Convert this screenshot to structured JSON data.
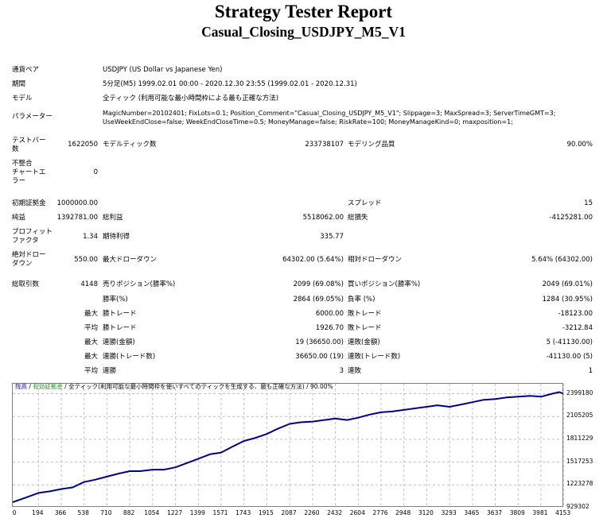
{
  "header": {
    "title": "Strategy Tester Report",
    "subtitle": "Casual_Closing_USDJPY_M5_V1"
  },
  "info": {
    "symbol_label": "通貨ペア",
    "symbol_value": "USDJPY (US Dollar vs Japanese Yen)",
    "period_label": "期間",
    "period_value": "5分足(M5) 1999.02.01 00:00 - 2020.12.30 23:55 (1999.02.01 - 2020.12.31)",
    "model_label": "モデル",
    "model_value": "全ティック (利用可能な最小時間枠による最も正確な方法)",
    "params_label": "パラメーター",
    "params_line1": "MagicNumber=20102401; FixLots=0.1; Position_Comment=\"Casual_Closing_USDJPY_M5_V1\"; Slippage=3; MaxSpread=3; ServerTimeGMT=3;",
    "params_line2": "UseWeekEndClose=false; WeekEndCloseTime=0.5; MoneyManage=false; RiskRate=100; MoneyManageKind=0; maxposition=1;"
  },
  "stats": {
    "bars_label_1": "テストバー",
    "bars_label_2": "数",
    "bars_value": "1622050",
    "ticks_label": "モデルティック数",
    "ticks_value": "233738107",
    "quality_label": "モデリング品質",
    "quality_value": "90.00%",
    "mismatch_label_1": "不整合",
    "mismatch_label_2": "チャートエ",
    "mismatch_label_3": "ラー",
    "mismatch_value": "0",
    "deposit_label": "初期証拠金",
    "deposit_value": "1000000.00",
    "spread_label": "スプレッド",
    "spread_value": "15",
    "net_profit_label": "純益",
    "net_profit_value": "1392781.00",
    "gross_profit_label": "総利益",
    "gross_profit_value": "5518062.00",
    "gross_loss_label": "総損失",
    "gross_loss_value": "-4125281.00",
    "pf_label_1": "プロフィット",
    "pf_label_2": "ファクタ",
    "pf_value": "1.34",
    "expected_label": "期待利得",
    "expected_value": "335.77",
    "abs_dd_label_1": "絶対ドロー",
    "abs_dd_label_2": "ダウン",
    "abs_dd_value": "550.00",
    "max_dd_label": "最大ドローダウン",
    "max_dd_value": "64302.00 (5.64%)",
    "rel_dd_label": "相対ドローダウン",
    "rel_dd_value": "5.64% (64302.00)",
    "total_trades_label": "総取引数",
    "total_trades_value": "4148",
    "short_label": "売りポジション(勝率%)",
    "short_value": "2099 (69.08%)",
    "long_label": "買いポジション(勝率%)",
    "long_value": "2049 (69.01%)",
    "win_rate_label": "勝率(%)",
    "win_rate_value": "2864 (69.05%)",
    "loss_rate_label": "負率 (%)",
    "loss_rate_value": "1284 (30.95%)",
    "max_label": "最大",
    "avg_label": "平均",
    "largest_win_label": "勝トレード",
    "largest_win_value": "6000.00",
    "largest_loss_label": "敗トレード",
    "largest_loss_value": "-18123.00",
    "avg_win_label": "勝トレード",
    "avg_win_value": "1926.70",
    "avg_loss_label": "敗トレード",
    "avg_loss_value": "-3212.84",
    "max_consec_win_label": "連勝(金額)",
    "max_consec_win_value": "19 (36650.00)",
    "max_consec_loss_label": "連敗(金額)",
    "max_consec_loss_value": "5 (-41130.00)",
    "max_consec_profit_label": "連勝(トレード数)",
    "max_consec_profit_value": "36650.00 (19)",
    "max_consec_lossamt_label": "連敗(トレード数)",
    "max_consec_lossamt_value": "-41130.00 (5)",
    "avg_consec_win_label": "連勝",
    "avg_consec_win_value": "3",
    "avg_consec_loss_label": "連敗",
    "avg_consec_loss_value": "1"
  },
  "chart_caption": {
    "balance": "残高",
    "sep1": " / ",
    "equity": "有効証拠金",
    "sep2": " / ",
    "model": "全ティック(利用可能な最小時間枠を使いすべてのティックを生成する、最も正確な方法)",
    "sep3": " / ",
    "quality": "90.00%"
  },
  "colors": {
    "balance_line": "#00008b",
    "equity_line": "#1a9a1a",
    "grid": "#c0c0c0"
  },
  "chart_data": {
    "type": "line",
    "title": "残高 / 有効証拠金 / 全ティック / 90.00%",
    "xlabel": "",
    "ylabel": "",
    "x_ticks": [
      "0",
      "194",
      "366",
      "538",
      "710",
      "882",
      "1054",
      "1227",
      "1399",
      "1571",
      "1743",
      "1915",
      "2087",
      "2260",
      "2432",
      "2604",
      "2776",
      "2948",
      "3120",
      "3293",
      "3465",
      "3637",
      "3809",
      "3981",
      "4153"
    ],
    "y_ticks": [
      "929302",
      "1223278",
      "1517253",
      "1811229",
      "2105205",
      "2399180"
    ],
    "ylim": [
      929302,
      2480000
    ],
    "xlim": [
      0,
      4148
    ],
    "grid": true,
    "legend": "caption top-left",
    "series": [
      {
        "name": "残高",
        "x": [
          0,
          100,
          194,
          280,
          366,
          450,
          538,
          620,
          710,
          800,
          882,
          960,
          1054,
          1140,
          1227,
          1320,
          1399,
          1490,
          1571,
          1660,
          1743,
          1830,
          1915,
          2000,
          2087,
          2170,
          2260,
          2350,
          2432,
          2520,
          2604,
          2690,
          2776,
          2860,
          2948,
          3030,
          3120,
          3200,
          3293,
          3380,
          3465,
          3550,
          3637,
          3720,
          3809,
          3900,
          3981,
          4070,
          4120,
          4148
        ],
        "values": [
          1000000,
          1060000,
          1120000,
          1140000,
          1170000,
          1190000,
          1260000,
          1290000,
          1330000,
          1370000,
          1400000,
          1400000,
          1420000,
          1420000,
          1450000,
          1510000,
          1560000,
          1620000,
          1640000,
          1720000,
          1790000,
          1830000,
          1880000,
          1950000,
          2010000,
          2030000,
          2040000,
          2060000,
          2080000,
          2060000,
          2090000,
          2130000,
          2160000,
          2170000,
          2190000,
          2210000,
          2230000,
          2250000,
          2230000,
          2260000,
          2290000,
          2320000,
          2330000,
          2350000,
          2360000,
          2370000,
          2360000,
          2400000,
          2420000,
          2400000
        ]
      }
    ]
  }
}
